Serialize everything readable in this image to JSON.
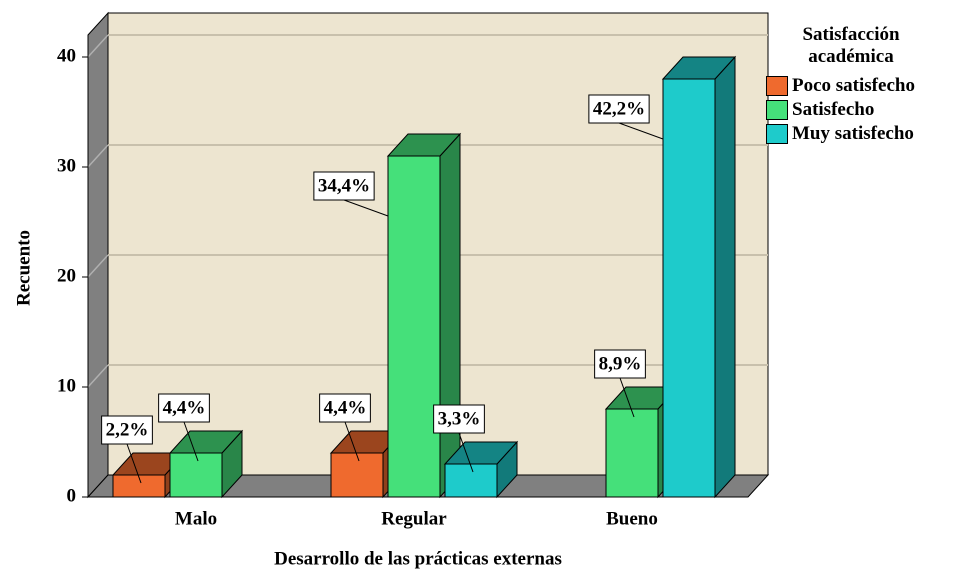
{
  "chart_data": {
    "type": "bar3d",
    "y_axis_label": "Recuento",
    "x_axis_label": "Desarrollo de las prácticas externas",
    "legend_title": "Satisfacción académica",
    "legend_position": "right",
    "grid": true,
    "categories": [
      "Malo",
      "Regular",
      "Bueno"
    ],
    "series": [
      {
        "name": "Poco satisfecho",
        "color": "#ef6a2e",
        "values": [
          2,
          4,
          null
        ],
        "percent_labels": [
          "2,2%",
          "4,4%",
          null
        ]
      },
      {
        "name": "Satisfecho",
        "color": "#45e07a",
        "values": [
          4,
          31,
          8
        ],
        "percent_labels": [
          "4,4%",
          "34,4%",
          "8,9%"
        ]
      },
      {
        "name": "Muy satisfecho",
        "color": "#1ecbcb",
        "values": [
          null,
          3,
          38
        ],
        "percent_labels": [
          null,
          "3,3%",
          "42,2%"
        ]
      }
    ],
    "ylim": [
      0,
      40
    ],
    "yticks": [
      0,
      10,
      20,
      30,
      40
    ]
  }
}
